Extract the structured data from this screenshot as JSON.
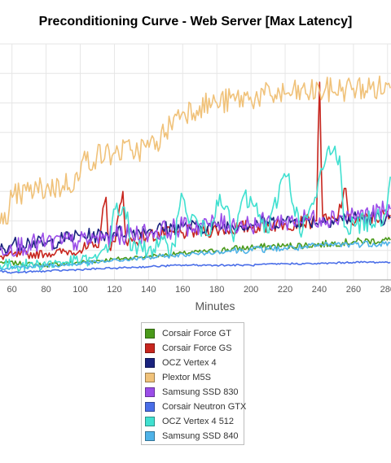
{
  "chart_data": {
    "type": "line",
    "title": "Preconditioning Curve - Web Server [Max Latency]",
    "xlabel": "Minutes",
    "ylabel": "",
    "xticks": [
      60,
      80,
      100,
      120,
      140,
      160,
      180,
      200,
      220,
      240,
      260,
      280
    ],
    "xlim": [
      53,
      282
    ],
    "ylim": [
      0,
      8
    ],
    "grid": true,
    "legend_position": "bottom",
    "series": [
      {
        "name": "Corsair Force GT",
        "color": "#4a9a1a",
        "points": [
          [
            53,
            0.6
          ],
          [
            80,
            0.5
          ],
          [
            100,
            0.6
          ],
          [
            120,
            0.7
          ],
          [
            140,
            0.8
          ],
          [
            160,
            0.9
          ],
          [
            180,
            1.0
          ],
          [
            200,
            1.1
          ],
          [
            220,
            1.15
          ],
          [
            240,
            1.2
          ],
          [
            260,
            1.3
          ],
          [
            282,
            1.35
          ]
        ]
      },
      {
        "name": "Corsair Force GS",
        "color": "#c8261e",
        "points": [
          [
            53,
            0.8
          ],
          [
            80,
            0.9
          ],
          [
            100,
            1.0
          ],
          [
            110,
            1.1
          ],
          [
            115,
            2.8
          ],
          [
            117,
            1.1
          ],
          [
            120,
            1.3
          ],
          [
            125,
            3.0
          ],
          [
            127,
            1.3
          ],
          [
            135,
            1.4
          ],
          [
            140,
            1.5
          ],
          [
            160,
            1.6
          ],
          [
            180,
            1.7
          ],
          [
            200,
            1.8
          ],
          [
            220,
            1.9
          ],
          [
            238,
            2.0
          ],
          [
            240,
            6.7
          ],
          [
            242,
            2.0
          ],
          [
            250,
            2.0
          ],
          [
            255,
            3.1
          ],
          [
            257,
            2.0
          ],
          [
            270,
            2.1
          ],
          [
            282,
            2.2
          ]
        ]
      },
      {
        "name": "OCZ Vertex 4",
        "color": "#1a237e",
        "points": [
          [
            53,
            1.0
          ],
          [
            60,
            1.2
          ],
          [
            70,
            1.3
          ],
          [
            80,
            1.2
          ],
          [
            90,
            1.4
          ],
          [
            100,
            1.5
          ],
          [
            110,
            1.5
          ],
          [
            120,
            1.6
          ],
          [
            140,
            1.7
          ],
          [
            160,
            1.8
          ],
          [
            180,
            1.8
          ],
          [
            200,
            1.9
          ],
          [
            220,
            2.0
          ],
          [
            240,
            2.0
          ],
          [
            260,
            2.1
          ],
          [
            282,
            2.1
          ]
        ]
      },
      {
        "name": "Plextor M5S",
        "color": "#f0c27a",
        "points": [
          [
            53,
            1.9
          ],
          [
            55,
            1.9
          ],
          [
            57,
            1.9
          ],
          [
            58,
            2.4
          ],
          [
            60,
            2.8
          ],
          [
            65,
            2.9
          ],
          [
            70,
            3.0
          ],
          [
            80,
            3.1
          ],
          [
            90,
            3.2
          ],
          [
            100,
            3.5
          ],
          [
            101,
            4.0
          ],
          [
            110,
            4.2
          ],
          [
            120,
            4.3
          ],
          [
            130,
            4.4
          ],
          [
            140,
            4.5
          ],
          [
            145,
            4.7
          ],
          [
            150,
            5.0
          ],
          [
            155,
            5.5
          ],
          [
            160,
            5.7
          ],
          [
            170,
            5.9
          ],
          [
            180,
            6.0
          ],
          [
            200,
            6.2
          ],
          [
            220,
            6.3
          ],
          [
            240,
            6.4
          ],
          [
            260,
            6.5
          ],
          [
            282,
            6.5
          ]
        ]
      },
      {
        "name": "Samsung SSD 830",
        "color": "#9b4de8",
        "points": [
          [
            53,
            1.1
          ],
          [
            70,
            1.2
          ],
          [
            90,
            1.3
          ],
          [
            100,
            1.3
          ],
          [
            120,
            1.5
          ],
          [
            140,
            1.6
          ],
          [
            150,
            1.7
          ],
          [
            160,
            1.8
          ],
          [
            175,
            1.9
          ],
          [
            200,
            1.9
          ],
          [
            220,
            2.0
          ],
          [
            240,
            2.1
          ],
          [
            260,
            2.2
          ],
          [
            270,
            2.2
          ],
          [
            282,
            2.4
          ]
        ]
      },
      {
        "name": "Corsair Neutron GTX",
        "color": "#4a6ee8",
        "points": [
          [
            53,
            0.3
          ],
          [
            60,
            0.25
          ],
          [
            80,
            0.3
          ],
          [
            100,
            0.35
          ],
          [
            120,
            0.4
          ],
          [
            140,
            0.45
          ],
          [
            160,
            0.5
          ],
          [
            180,
            0.5
          ],
          [
            200,
            0.5
          ],
          [
            220,
            0.55
          ],
          [
            240,
            0.55
          ],
          [
            260,
            0.6
          ],
          [
            282,
            0.6
          ]
        ]
      },
      {
        "name": "OCZ Vertex 4 512",
        "color": "#40e0d0",
        "points": [
          [
            53,
            0.5
          ],
          [
            70,
            0.5
          ],
          [
            90,
            0.6
          ],
          [
            110,
            0.7
          ],
          [
            115,
            1.2
          ],
          [
            118,
            1.3
          ],
          [
            120,
            2.4
          ],
          [
            128,
            2.3
          ],
          [
            130,
            1.0
          ],
          [
            140,
            1.1
          ],
          [
            155,
            1.2
          ],
          [
            158,
            2.5
          ],
          [
            160,
            2.8
          ],
          [
            162,
            2.3
          ],
          [
            175,
            1.5
          ],
          [
            180,
            2.7
          ],
          [
            182,
            2.9
          ],
          [
            185,
            2.5
          ],
          [
            190,
            1.3
          ],
          [
            195,
            2.8
          ],
          [
            202,
            2.5
          ],
          [
            210,
            1.6
          ],
          [
            218,
            3.4
          ],
          [
            222,
            3.6
          ],
          [
            225,
            2.5
          ],
          [
            230,
            1.7
          ],
          [
            238,
            2.8
          ],
          [
            245,
            4.4
          ],
          [
            252,
            4.2
          ],
          [
            255,
            1.8
          ],
          [
            262,
            1.9
          ],
          [
            270,
            2.0
          ],
          [
            278,
            2.2
          ],
          [
            282,
            3.5
          ]
        ]
      },
      {
        "name": "Samsung SSD 840",
        "color": "#4fb3e8",
        "points": [
          [
            53,
            0.4
          ],
          [
            70,
            0.45
          ],
          [
            90,
            0.5
          ],
          [
            110,
            0.6
          ],
          [
            130,
            0.7
          ],
          [
            150,
            0.8
          ],
          [
            170,
            0.9
          ],
          [
            190,
            1.0
          ],
          [
            210,
            1.05
          ],
          [
            230,
            1.1
          ],
          [
            250,
            1.2
          ],
          [
            282,
            1.25
          ]
        ]
      }
    ]
  }
}
